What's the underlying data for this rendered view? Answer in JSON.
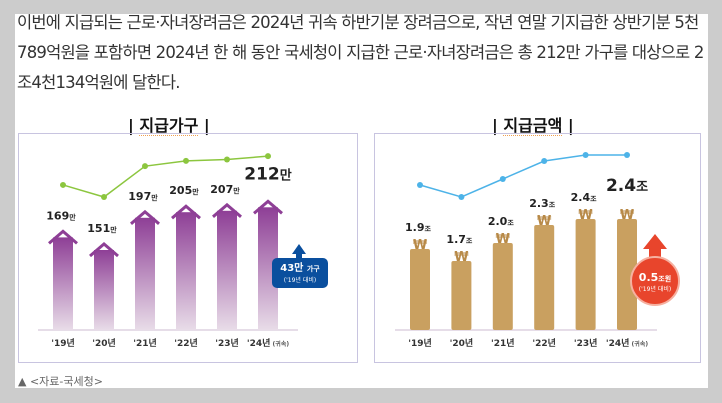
{
  "article": {
    "paragraph": "이번에 지급되는 근로·자녀장려금은 2024년 귀속 하반기분 장려금으로, 작년 연말 기지급한 상반기분 5천789억원을 포함하면 2024년 한 해 동안 국세청이 지급한 근로·자녀장려금은 총 212만 가구를 대상으로 2조4천134억원에 달한다.",
    "caption_marker": "▲",
    "caption": "<자료-국세청>"
  },
  "chart_data": [
    {
      "type": "bar",
      "title": "지급가구",
      "categories": [
        "'19년",
        "'20년",
        "'21년",
        "'22년",
        "'23년",
        "'24년"
      ],
      "category_note": "(귀속)",
      "values": [
        169,
        151,
        197,
        205,
        207,
        212
      ],
      "value_labels": [
        "169",
        "151",
        "197",
        "205",
        "207",
        "212"
      ],
      "unit": "만",
      "bar_color": "#8e3f96",
      "line_color": "#8cc63f",
      "callout": {
        "value": "43만",
        "unit": "가구",
        "note": "('19년 대비)",
        "color": "#0a4f9e"
      }
    },
    {
      "type": "bar",
      "title": "지급금액",
      "categories": [
        "'19년",
        "'20년",
        "'21년",
        "'22년",
        "'23년",
        "'24년"
      ],
      "category_note": "(귀속)",
      "values": [
        1.9,
        1.7,
        2.0,
        2.3,
        2.4,
        2.4
      ],
      "value_labels": [
        "1.9",
        "1.7",
        "2.0",
        "2.3",
        "2.4",
        "2.4"
      ],
      "unit": "조",
      "bar_color": "#c9a060",
      "line_color": "#4db3e8",
      "callout": {
        "value": "0.5",
        "unit": "조원",
        "note": "('19년 대비)",
        "color": "#e8452c"
      }
    }
  ]
}
